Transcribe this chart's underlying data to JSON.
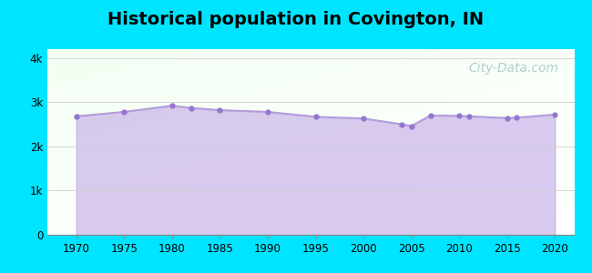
{
  "title": "Historical population in Covington, IN",
  "title_fontsize": 14,
  "title_fontweight": "bold",
  "background_color": "#00e5ff",
  "years": [
    1970,
    1975,
    1980,
    1982,
    1985,
    1990,
    1995,
    2000,
    2004,
    2005,
    2007,
    2010,
    2011,
    2015,
    2016,
    2020
  ],
  "population": [
    2680,
    2780,
    2920,
    2870,
    2820,
    2780,
    2670,
    2630,
    2500,
    2460,
    2700,
    2690,
    2680,
    2640,
    2650,
    2720
  ],
  "line_color": "#b39ddb",
  "fill_color": "#c5aee8",
  "fill_alpha": 0.65,
  "marker_color": "#9575cd",
  "marker_size": 3.5,
  "ylim": [
    0,
    4200
  ],
  "ytick_vals": [
    0,
    1000,
    2000,
    3000,
    4000
  ],
  "xtick_vals": [
    1970,
    1975,
    1980,
    1985,
    1990,
    1995,
    2000,
    2005,
    2010,
    2015,
    2020
  ],
  "grid_color": "#d0d0d0",
  "xlim_left": 1967,
  "xlim_right": 2022,
  "watermark": "City-Data.com",
  "watermark_color": "#a8c8cc",
  "watermark_fontsize": 10
}
